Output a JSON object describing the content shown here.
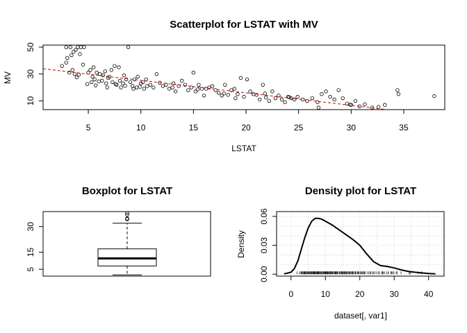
{
  "chart_data": [
    {
      "type": "scatter",
      "title": "Scatterplot for LSTAT with MV",
      "xlabel": "LSTAT",
      "ylabel": "MV",
      "xlim": [
        0.7,
        38.9
      ],
      "ylim": [
        3.5,
        51.5
      ],
      "xticks": [
        5,
        10,
        15,
        20,
        25,
        30,
        35
      ],
      "yticks": [
        10,
        30,
        50
      ],
      "grid": false,
      "trend_line": {
        "color": "#cc0000",
        "style": "dashed",
        "x": [
          0.7,
          33.4
        ],
        "y": [
          33.9,
          3.5
        ]
      },
      "points": [
        [
          2.9,
          50
        ],
        [
          3.3,
          50
        ],
        [
          3.6,
          46.5
        ],
        [
          4.0,
          50
        ],
        [
          4.3,
          50
        ],
        [
          4.6,
          50
        ],
        [
          3.0,
          42
        ],
        [
          3.4,
          44
        ],
        [
          3.8,
          48
        ],
        [
          4.2,
          44.8
        ],
        [
          2.5,
          36
        ],
        [
          2.9,
          38.5
        ],
        [
          3.5,
          33
        ],
        [
          3.7,
          30
        ],
        [
          4.1,
          29.5
        ],
        [
          4.5,
          37
        ],
        [
          3.2,
          31
        ],
        [
          3.9,
          27.5
        ],
        [
          5.0,
          31
        ],
        [
          5.2,
          33
        ],
        [
          5.5,
          35
        ],
        [
          5.8,
          31
        ],
        [
          6.1,
          30
        ],
        [
          6.4,
          29
        ],
        [
          5.3,
          24
        ],
        [
          5.6,
          26
        ],
        [
          6.0,
          24.5
        ],
        [
          6.3,
          25
        ],
        [
          6.7,
          23
        ],
        [
          7.0,
          28
        ],
        [
          7.3,
          24
        ],
        [
          7.6,
          22.5
        ],
        [
          8.0,
          25
        ],
        [
          8.3,
          23
        ],
        [
          8.6,
          26
        ],
        [
          5.7,
          21.5
        ],
        [
          6.8,
          20
        ],
        [
          7.2,
          33
        ],
        [
          7.5,
          36
        ],
        [
          7.9,
          35
        ],
        [
          8.4,
          29
        ],
        [
          8.8,
          50
        ],
        [
          4.9,
          22.5
        ],
        [
          5.4,
          28
        ],
        [
          6.6,
          32
        ],
        [
          6.9,
          27
        ],
        [
          7.7,
          22
        ],
        [
          8.1,
          20
        ],
        [
          8.5,
          21.2
        ],
        [
          9.0,
          24
        ],
        [
          9.2,
          21
        ],
        [
          9.4,
          26
        ],
        [
          9.7,
          28
        ],
        [
          10.0,
          23
        ],
        [
          10.2,
          24
        ],
        [
          10.5,
          26
        ],
        [
          9.3,
          19
        ],
        [
          9.6,
          20
        ],
        [
          9.9,
          20.5
        ],
        [
          10.3,
          19
        ],
        [
          10.6,
          21
        ],
        [
          10.9,
          22
        ],
        [
          11.2,
          20
        ],
        [
          11.5,
          30
        ],
        [
          11.8,
          23.5
        ],
        [
          12.1,
          21
        ],
        [
          12.4,
          22
        ],
        [
          12.7,
          19
        ],
        [
          13.0,
          20
        ],
        [
          13.3,
          17
        ],
        [
          13.6,
          21
        ],
        [
          13.9,
          25
        ],
        [
          14.2,
          22
        ],
        [
          14.5,
          18
        ],
        [
          14.8,
          20
        ],
        [
          15.0,
          31
        ],
        [
          15.2,
          17
        ],
        [
          15.5,
          22
        ],
        [
          15.8,
          19
        ],
        [
          16.0,
          14
        ],
        [
          16.2,
          19
        ],
        [
          16.5,
          20
        ],
        [
          16.8,
          21
        ],
        [
          17.1,
          18
        ],
        [
          17.4,
          16
        ],
        [
          17.7,
          14
        ],
        [
          18.0,
          22
        ],
        [
          18.3,
          14.5
        ],
        [
          18.6,
          18
        ],
        [
          18.9,
          19
        ],
        [
          19.2,
          15
        ],
        [
          19.5,
          27
        ],
        [
          19.8,
          13
        ],
        [
          20.1,
          26
        ],
        [
          20.4,
          17
        ],
        [
          20.7,
          15
        ],
        [
          21.0,
          14.5
        ],
        [
          21.3,
          11
        ],
        [
          21.6,
          22
        ],
        [
          21.9,
          12.5
        ],
        [
          22.2,
          10
        ],
        [
          22.5,
          17
        ],
        [
          22.8,
          12
        ],
        [
          23.1,
          14
        ],
        [
          23.4,
          11
        ],
        [
          23.7,
          9
        ],
        [
          24.0,
          13
        ],
        [
          24.3,
          12
        ],
        [
          24.6,
          11
        ],
        [
          24.9,
          13
        ],
        [
          25.4,
          11
        ],
        [
          25.8,
          10
        ],
        [
          26.3,
          12
        ],
        [
          26.8,
          9
        ],
        [
          27.2,
          15
        ],
        [
          27.6,
          17
        ],
        [
          28.0,
          13
        ],
        [
          28.4,
          11
        ],
        [
          28.8,
          18
        ],
        [
          29.2,
          12
        ],
        [
          29.6,
          8
        ],
        [
          30.0,
          7
        ],
        [
          30.4,
          10
        ],
        [
          30.8,
          6
        ],
        [
          31.3,
          7.5
        ],
        [
          32.0,
          5
        ],
        [
          32.6,
          5.5
        ],
        [
          33.2,
          7
        ],
        [
          34.4,
          18
        ],
        [
          34.5,
          15
        ],
        [
          37.9,
          13.5
        ],
        [
          13.1,
          23
        ],
        [
          15.4,
          18.5
        ],
        [
          17.9,
          15.5
        ],
        [
          19.0,
          12
        ],
        [
          21.8,
          15.5
        ],
        [
          24.1,
          12.8
        ],
        [
          26.9,
          5
        ],
        [
          29.9,
          7.2
        ]
      ]
    },
    {
      "type": "box",
      "title": "Boxplot for  LSTAT",
      "ylim": [
        1.0,
        38.8
      ],
      "yticks": [
        5,
        15,
        30
      ],
      "stats": {
        "whisker_low": 1.73,
        "q1": 6.95,
        "median": 11.36,
        "q3": 16.96,
        "whisker_high": 31.99
      },
      "outliers": [
        34.37,
        34.41,
        34.77,
        36.98,
        37.97
      ]
    },
    {
      "type": "line",
      "title": "Density plot for LSTAT",
      "xlabel": "dataset[, var1]",
      "ylabel": "Density",
      "xlim": [
        -4.2,
        44.5
      ],
      "ylim": [
        -0.002,
        0.065
      ],
      "xticks": [
        0,
        10,
        20,
        30,
        40
      ],
      "yticks": [
        0.0,
        0.03,
        0.06
      ],
      "ytick_labels": [
        "0.00",
        "0.03",
        "0.06"
      ],
      "grid": true,
      "rug": true,
      "x": [
        -2.0,
        0.0,
        1.0,
        2.0,
        3.0,
        4.0,
        5.0,
        6.0,
        7.0,
        8.0,
        9.0,
        10.0,
        12.0,
        14.0,
        16.0,
        18.0,
        20.0,
        22.0,
        24.0,
        26.0,
        28.0,
        30.0,
        32.0,
        34.0,
        36.0,
        38.0,
        40.0,
        42.0
      ],
      "y": [
        0.0003,
        0.002,
        0.006,
        0.014,
        0.026,
        0.038,
        0.048,
        0.055,
        0.058,
        0.058,
        0.057,
        0.055,
        0.051,
        0.046,
        0.041,
        0.036,
        0.03,
        0.021,
        0.013,
        0.009,
        0.008,
        0.0065,
        0.0045,
        0.003,
        0.002,
        0.0013,
        0.0007,
        0.0003
      ],
      "rug_values": [
        1.73,
        2.47,
        2.87,
        2.94,
        3.11,
        3.33,
        3.53,
        3.76,
        3.95,
        4.03,
        4.21,
        4.45,
        4.59,
        4.82,
        4.97,
        5.21,
        5.29,
        5.5,
        5.68,
        5.9,
        6.05,
        6.21,
        6.43,
        6.58,
        6.72,
        6.86,
        7.01,
        7.14,
        7.34,
        7.56,
        7.7,
        7.83,
        7.9,
        8.05,
        8.2,
        8.43,
        8.65,
        8.81,
        9.04,
        9.28,
        9.45,
        9.62,
        9.81,
        9.97,
        10.11,
        10.29,
        10.45,
        10.59,
        10.74,
        10.97,
        11.1,
        11.34,
        11.48,
        11.64,
        11.72,
        11.98,
        12.13,
        12.34,
        12.6,
        12.8,
        12.93,
        13.09,
        13.27,
        13.44,
        13.61,
        13.99,
        14.1,
        14.36,
        14.59,
        14.69,
        14.8,
        15.02,
        15.12,
        15.37,
        15.55,
        15.7,
        15.79,
        16.03,
        16.21,
        16.42,
        16.65,
        16.9,
        17.1,
        17.27,
        17.6,
        17.79,
        17.92,
        18.05,
        18.33,
        18.68,
        18.76,
        19.01,
        19.31,
        19.52,
        19.77,
        20.08,
        20.32,
        20.62,
        20.85,
        21.08,
        21.32,
        21.52,
        22.11,
        22.6,
        22.98,
        23.24,
        23.69,
        23.98,
        24.39,
        24.91,
        25.41,
        25.79,
        26.42,
        26.64,
        26.82,
        27.26,
        27.8,
        28.28,
        28.32,
        29.05,
        29.29,
        29.55,
        29.93,
        30.59,
        30.81,
        31.99,
        34.37,
        34.41,
        34.77,
        36.98,
        37.97
      ]
    }
  ]
}
